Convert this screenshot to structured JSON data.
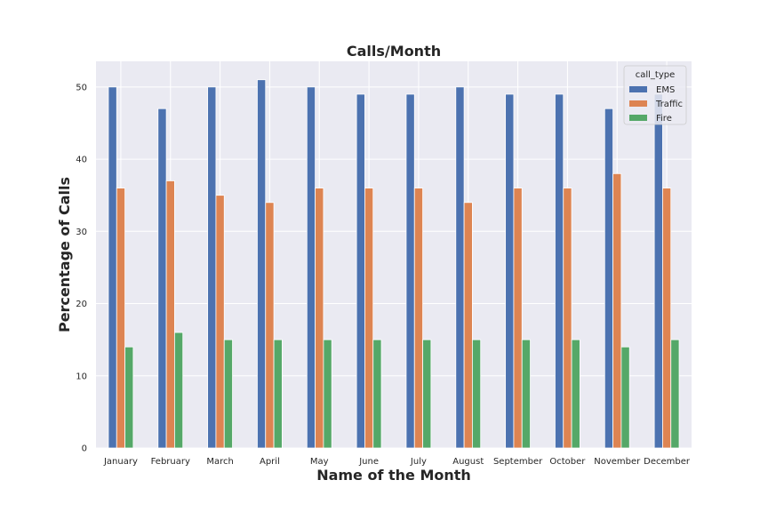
{
  "chart_data": {
    "type": "bar",
    "title": "Calls/Month",
    "xlabel": "Name of the Month",
    "ylabel": "Percentage of Calls",
    "categories": [
      "January",
      "February",
      "March",
      "April",
      "May",
      "June",
      "July",
      "August",
      "September",
      "October",
      "November",
      "December"
    ],
    "series": [
      {
        "name": "EMS",
        "color": "#4c72b0",
        "values": [
          50,
          47,
          50,
          51,
          50,
          49,
          49,
          50,
          49,
          49,
          47,
          49
        ]
      },
      {
        "name": "Traffic",
        "color": "#dd8452",
        "values": [
          36,
          37,
          35,
          34,
          36,
          36,
          36,
          34,
          36,
          36,
          38,
          36
        ]
      },
      {
        "name": "Fire",
        "color": "#55a868",
        "values": [
          14,
          16,
          15,
          15,
          15,
          15,
          15,
          15,
          15,
          15,
          14,
          15
        ]
      }
    ],
    "ylim": [
      0,
      53.55
    ],
    "yticks": [
      0,
      10,
      20,
      30,
      40,
      50
    ],
    "legend": {
      "title": "call_type",
      "placement": "top-right"
    },
    "grid": true,
    "plot_background": "#eaeaf2"
  }
}
